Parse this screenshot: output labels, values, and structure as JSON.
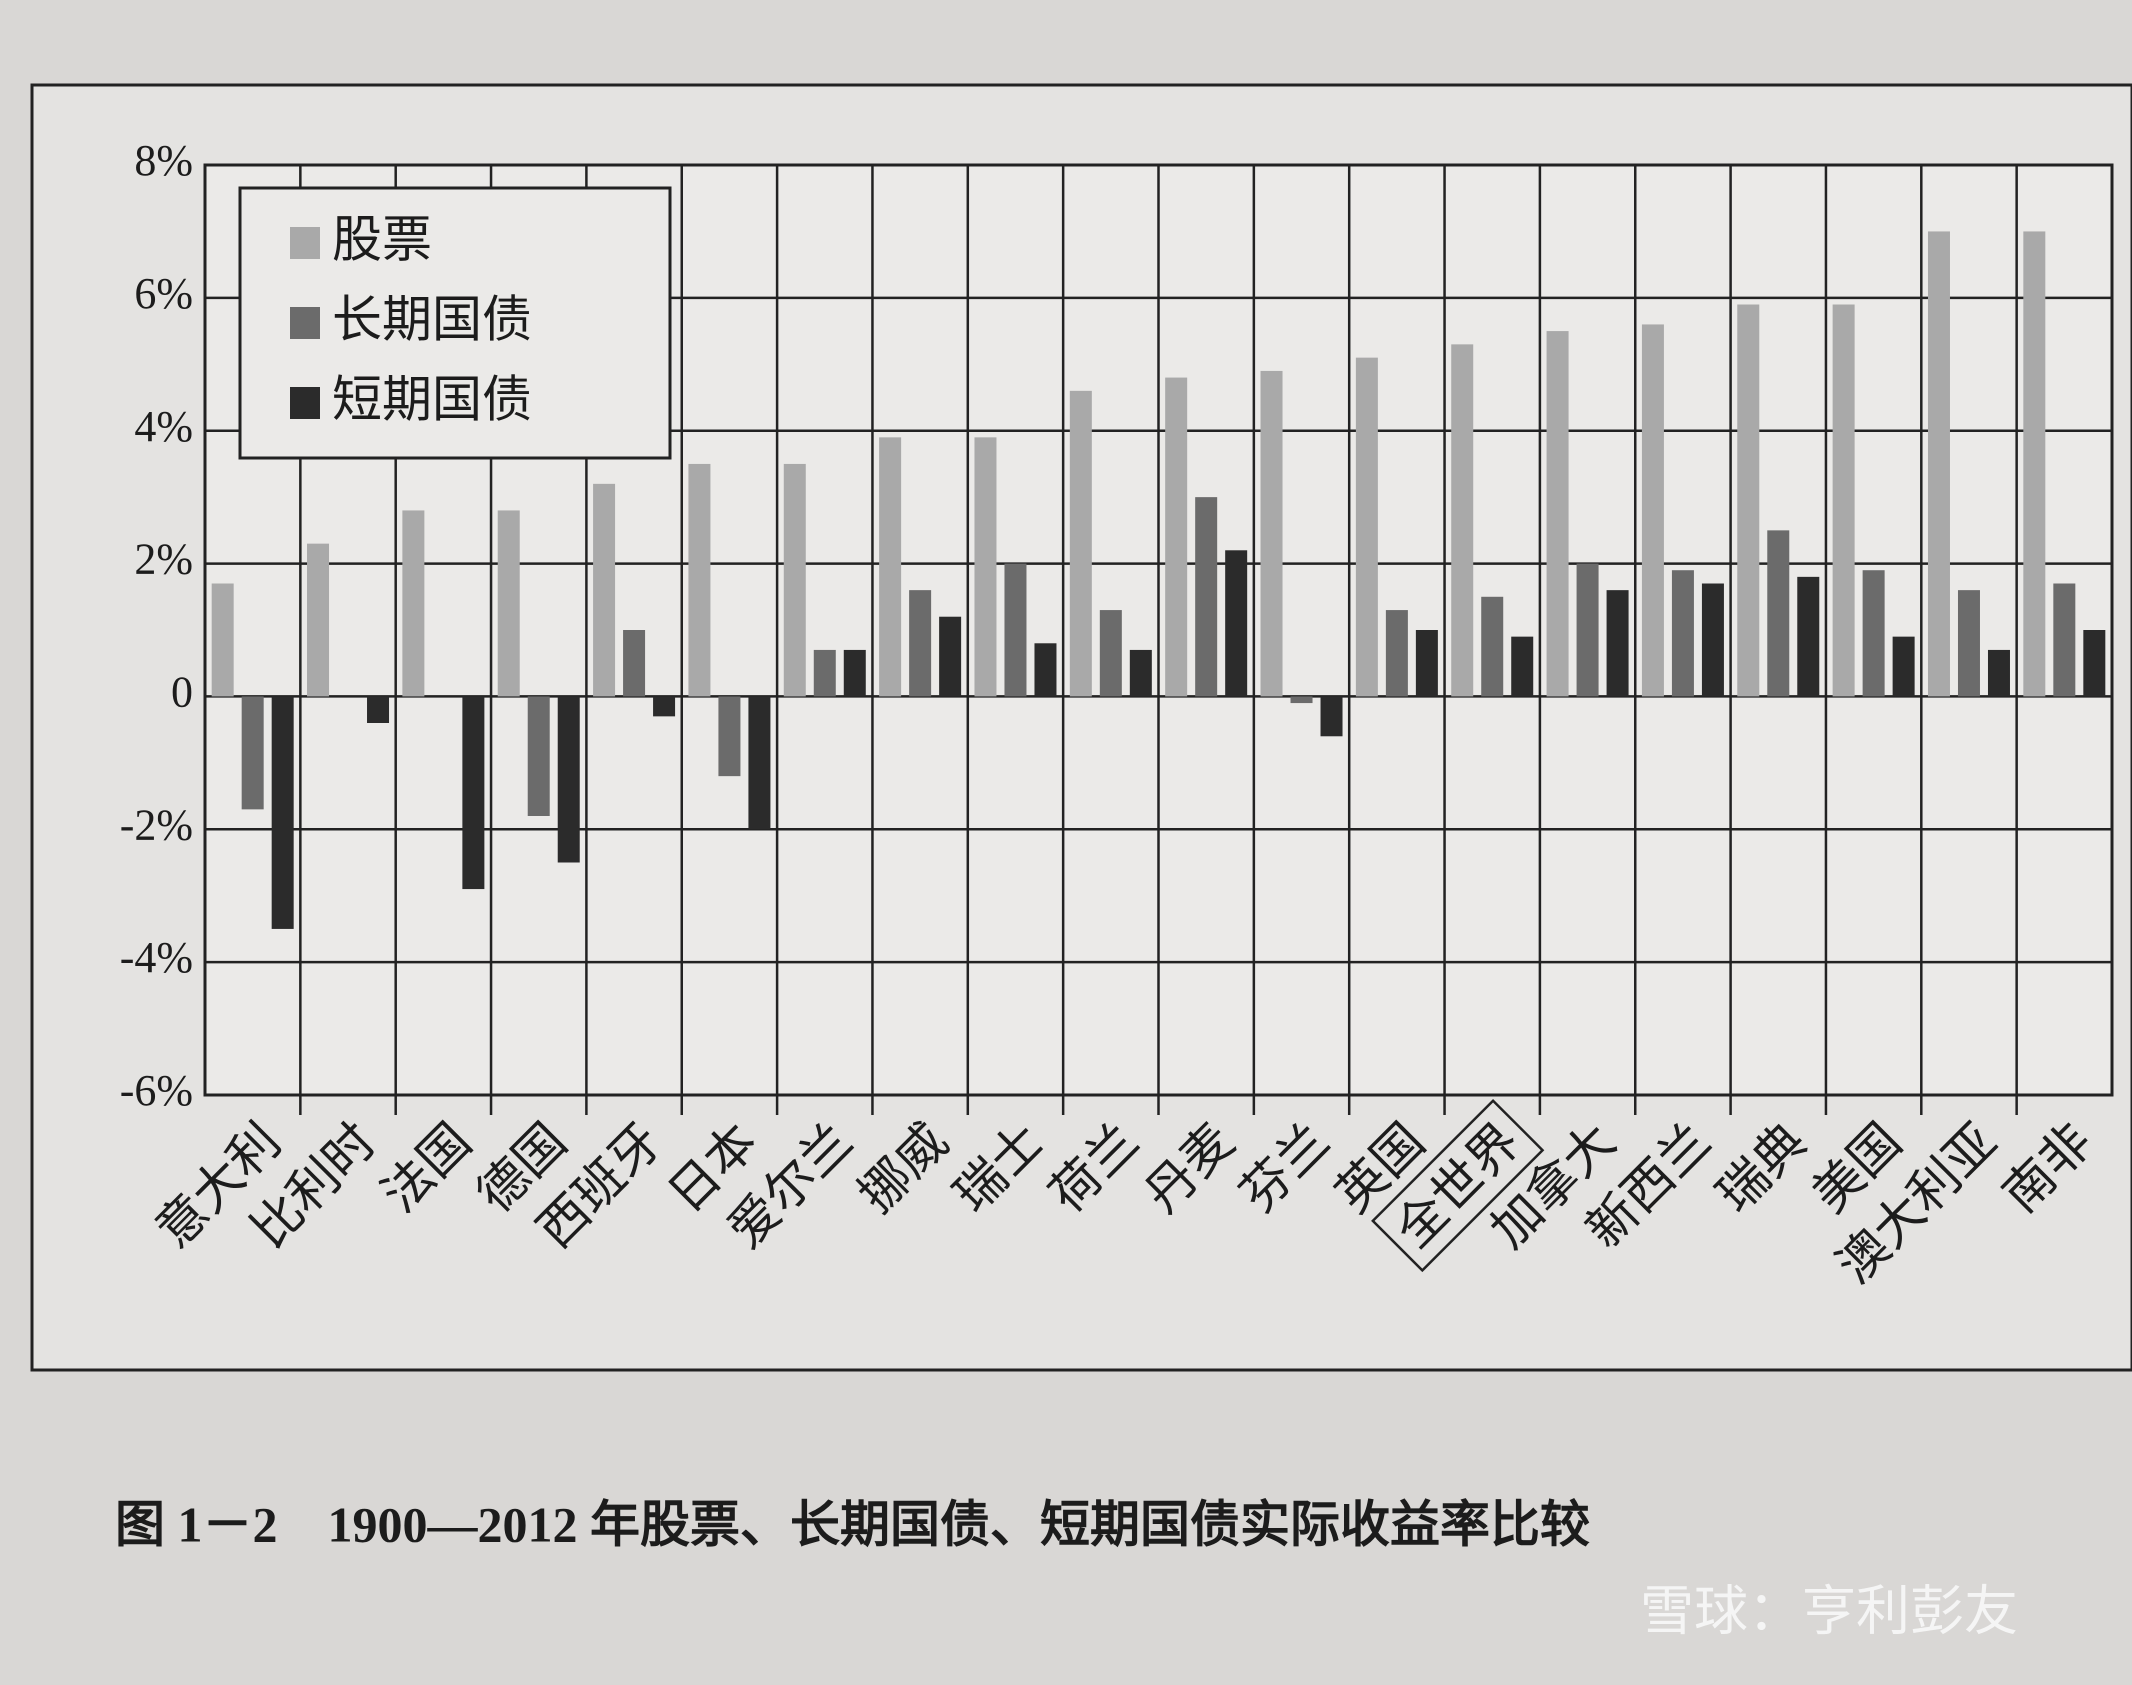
{
  "chart_data": {
    "type": "bar",
    "caption": "图 1－2　1900—2012 年股票、长期国债、短期国债实际收益率比较",
    "watermark": "雪球：亨利彭友",
    "categories": [
      "意大利",
      "比利时",
      "法国",
      "德国",
      "西班牙",
      "日本",
      "爱尔兰",
      "挪威",
      "瑞士",
      "荷兰",
      "丹麦",
      "芬兰",
      "英国",
      "全世界",
      "加拿大",
      "新西兰",
      "瑞典",
      "美国",
      "澳大利亚",
      "南非"
    ],
    "series": [
      {
        "name": "股票",
        "color": "#a9a9a9",
        "values": [
          1.7,
          2.3,
          2.8,
          2.8,
          3.2,
          3.5,
          3.5,
          3.9,
          3.9,
          4.6,
          4.8,
          4.9,
          5.1,
          5.3,
          5.5,
          5.6,
          5.9,
          5.9,
          7.0,
          7.0
        ]
      },
      {
        "name": "长期国债",
        "color": "#6b6b6b",
        "values": [
          -1.7,
          0,
          0,
          -1.8,
          1.0,
          -1.2,
          0.7,
          1.6,
          2.0,
          1.3,
          3.0,
          -0.1,
          1.3,
          1.5,
          2.0,
          1.9,
          2.5,
          1.9,
          1.6,
          1.7
        ]
      },
      {
        "name": "短期国债",
        "color": "#2b2b2b",
        "values": [
          -3.5,
          -0.4,
          -2.9,
          -2.5,
          -0.3,
          -2.0,
          0.7,
          1.2,
          0.8,
          0.7,
          2.2,
          -0.6,
          1.0,
          0.9,
          1.6,
          1.7,
          1.8,
          0.9,
          0.7,
          1.0
        ]
      }
    ],
    "ylim": [
      -6,
      8
    ],
    "yticks": [
      {
        "value": -6,
        "label": "-6%"
      },
      {
        "value": -4,
        "label": "-4%"
      },
      {
        "value": -2,
        "label": "-2%"
      },
      0,
      {
        "value": 2,
        "label": "2%"
      },
      {
        "value": 4,
        "label": "4%"
      },
      {
        "value": 6,
        "label": "6%"
      },
      {
        "value": 8,
        "label": "8%"
      }
    ],
    "grid": true,
    "legend": "top-left"
  }
}
